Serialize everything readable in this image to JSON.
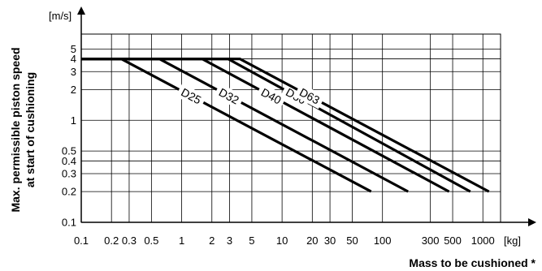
{
  "chart_data": {
    "type": "line",
    "x_scale": "log",
    "y_scale": "log",
    "xlim": [
      0.1,
      1500
    ],
    "ylim": [
      0.1,
      7
    ],
    "grid": true,
    "x_unit": "[kg]",
    "y_unit": "[m/s]",
    "xlabel": "Mass to be cushioned *",
    "ylabel_line1": "Max. permissible piston speed",
    "ylabel_line2": "at start of cushioning",
    "x_ticks": [
      "0.1",
      "0.2",
      "0.3",
      "0.5",
      "1",
      "2",
      "3",
      "5",
      "10",
      "20",
      "30",
      "50",
      "100",
      "300",
      "500",
      "1000"
    ],
    "y_ticks": [
      "0.1",
      "0.2",
      "0.3",
      "0.4",
      "0.5",
      "1",
      "2",
      "3",
      "4",
      "5"
    ],
    "x_tick_values": [
      0.1,
      0.2,
      0.3,
      0.5,
      1,
      2,
      3,
      5,
      10,
      20,
      30,
      50,
      100,
      300,
      500,
      1000
    ],
    "y_tick_values": [
      0.1,
      0.2,
      0.3,
      0.4,
      0.5,
      1,
      2,
      3,
      4,
      5
    ],
    "series": [
      {
        "name": "D25",
        "x": [
          0.1,
          0.25,
          77
        ],
        "y": [
          4,
          4,
          0.2
        ]
      },
      {
        "name": "D32",
        "x": [
          0.1,
          0.6,
          180
        ],
        "y": [
          4,
          4,
          0.2
        ]
      },
      {
        "name": "D40",
        "x": [
          0.1,
          1.6,
          460
        ],
        "y": [
          4,
          4,
          0.2
        ]
      },
      {
        "name": "D50",
        "x": [
          0.1,
          2.9,
          750
        ],
        "y": [
          4,
          4,
          0.2
        ]
      },
      {
        "name": "D63",
        "x": [
          0.1,
          3.8,
          1150
        ],
        "y": [
          4,
          4,
          0.2
        ]
      }
    ]
  }
}
